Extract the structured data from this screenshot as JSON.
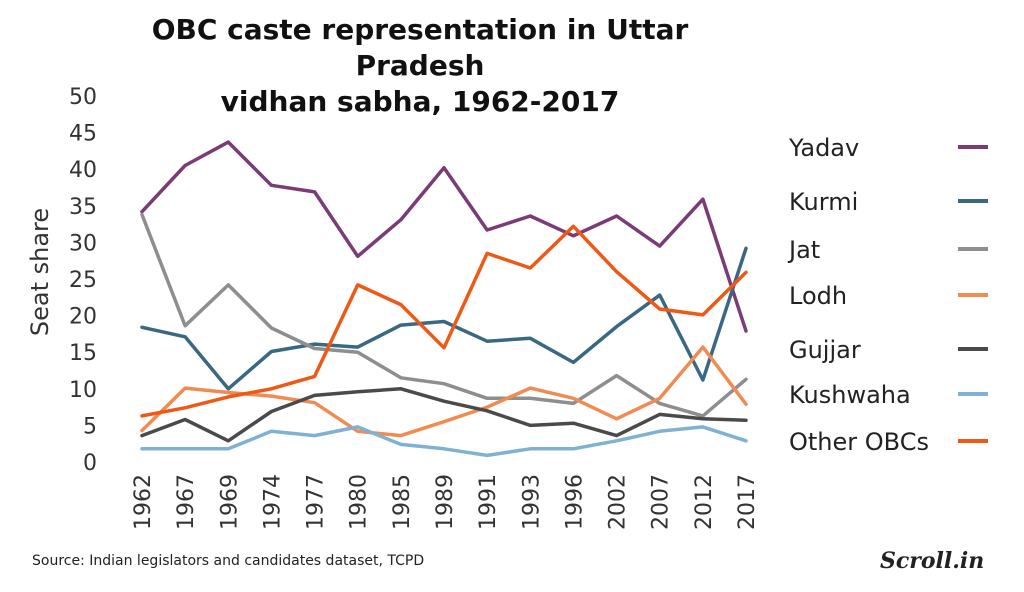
{
  "chart_data": {
    "type": "line",
    "title_line1": "OBC caste representation in Uttar Pradesh",
    "title_line2": "vidhan sabha, 1962-2017",
    "ylabel": "Seat share",
    "xlabel": "",
    "ylim": [
      0,
      50
    ],
    "yticks": [
      0,
      5,
      10,
      15,
      20,
      25,
      30,
      35,
      40,
      45,
      50
    ],
    "categories": [
      "1962",
      "1967",
      "1969",
      "1974",
      "1977",
      "1980",
      "1985",
      "1989",
      "1991",
      "1993",
      "1996",
      "2002",
      "2007",
      "2012",
      "2017"
    ],
    "legend_position": "right",
    "grid": false,
    "series": [
      {
        "name": "Yadav",
        "color": "#7b3b76",
        "values": [
          34.2,
          40.5,
          43.7,
          37.8,
          36.9,
          28.1,
          33.1,
          40.2,
          31.7,
          33.6,
          30.9,
          33.6,
          29.5,
          35.9,
          17.9
        ]
      },
      {
        "name": "Kurmi",
        "color": "#3a6883",
        "values": [
          18.4,
          17.1,
          10.0,
          15.1,
          16.1,
          15.7,
          18.7,
          19.2,
          16.5,
          16.9,
          13.6,
          18.5,
          22.8,
          11.2,
          29.2
        ]
      },
      {
        "name": "Jat",
        "color": "#8e8e8e",
        "values": [
          33.8,
          18.6,
          24.2,
          18.3,
          15.5,
          15.0,
          11.5,
          10.7,
          8.7,
          8.7,
          8.0,
          11.8,
          8.0,
          6.3,
          11.3
        ]
      },
      {
        "name": "Lodh",
        "color": "#f08c52",
        "values": [
          4.3,
          10.1,
          9.5,
          9.0,
          8.1,
          4.2,
          3.6,
          5.5,
          7.5,
          10.1,
          8.7,
          5.9,
          8.7,
          15.7,
          7.9
        ]
      },
      {
        "name": "Gujjar",
        "color": "#4a4a4a",
        "values": [
          3.6,
          5.8,
          2.9,
          6.9,
          9.1,
          9.6,
          10.0,
          8.3,
          7.0,
          5.0,
          5.3,
          3.6,
          6.5,
          5.9,
          5.7
        ]
      },
      {
        "name": "Kushwaha",
        "color": "#7fb1d3",
        "values": [
          1.8,
          1.8,
          1.8,
          4.2,
          3.6,
          4.8,
          2.4,
          1.8,
          0.9,
          1.8,
          1.8,
          2.9,
          4.2,
          4.8,
          2.9
        ]
      },
      {
        "name": "Other OBCs",
        "color": "#ee5a16",
        "values": [
          6.3,
          7.4,
          8.9,
          10.0,
          11.7,
          24.2,
          21.5,
          15.6,
          28.5,
          26.5,
          32.2,
          26.0,
          20.9,
          20.1,
          25.9
        ]
      }
    ]
  },
  "source": "Source: Indian legislators and candidates dataset, TCPD",
  "brand": "Scroll.in"
}
